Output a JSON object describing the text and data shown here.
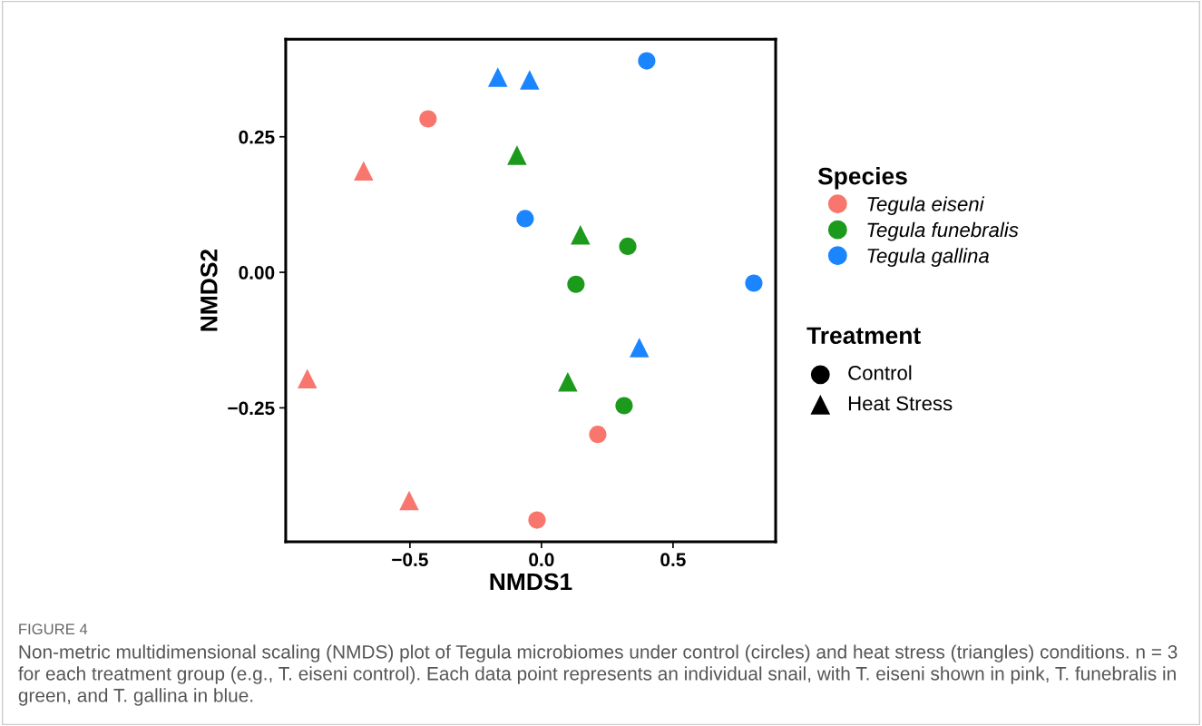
{
  "chart_data": {
    "type": "scatter",
    "xlabel": "NMDS1",
    "ylabel": "NMDS2",
    "xlim": [
      -0.972,
      0.89
    ],
    "ylim": [
      -0.497,
      0.43
    ],
    "xticks": [
      {
        "value": -0.5,
        "label": "−0.5"
      },
      {
        "value": 0.0,
        "label": "0.0"
      },
      {
        "value": 0.5,
        "label": "0.5"
      }
    ],
    "yticks": [
      {
        "value": -0.25,
        "label": "−0.25"
      },
      {
        "value": 0.0,
        "label": "0.00"
      },
      {
        "value": 0.25,
        "label": "0.25"
      }
    ],
    "grid": false,
    "legend": "right",
    "legend_title": "Species",
    "series": [
      {
        "name": "Tegula eiseni",
        "color": "#f8766d",
        "marker": "circle",
        "x": [
          -0.431,
          0.214,
          -0.017
        ],
        "values": [
          0.283,
          -0.299,
          -0.457
        ]
      },
      {
        "color": "#f8766d",
        "marker": "triangle",
        "x": [
          -0.676,
          -0.89,
          -0.503
        ],
        "values": [
          0.187,
          -0.196,
          -0.421
        ]
      },
      {
        "name": "Tegula funebralis",
        "color": "#1c9a1c",
        "marker": "circle",
        "x": [
          0.328,
          0.131,
          0.314
        ],
        "values": [
          0.048,
          -0.022,
          -0.246
        ]
      },
      {
        "color": "#1c9a1c",
        "marker": "triangle",
        "x": [
          -0.093,
          0.148,
          0.1
        ],
        "values": [
          0.216,
          0.069,
          -0.202
        ]
      },
      {
        "name": "Tegula gallina",
        "color": "#1a85ff",
        "marker": "circle",
        "x": [
          0.4,
          -0.062,
          0.807
        ],
        "values": [
          0.39,
          0.099,
          -0.02
        ]
      },
      {
        "color": "#1a85ff",
        "marker": "triangle",
        "x": [
          -0.166,
          -0.045,
          0.372
        ],
        "values": [
          0.36,
          0.355,
          -0.139
        ]
      }
    ],
    "annotations": [
      "Treatment",
      "Control",
      "Heat Stress",
      "FIGURE 4",
      "Non-metric multidimensional scaling (NMDS) plot of Tegula microbiomes under control (circles) and heat stress (triangles) conditions. n = 3 for each treatment group (e.g., T. eiseni control). Each data point represents an individual snail, with T. eiseni shown in pink, T. funebralis in green, and T. gallina in blue."
    ]
  }
}
